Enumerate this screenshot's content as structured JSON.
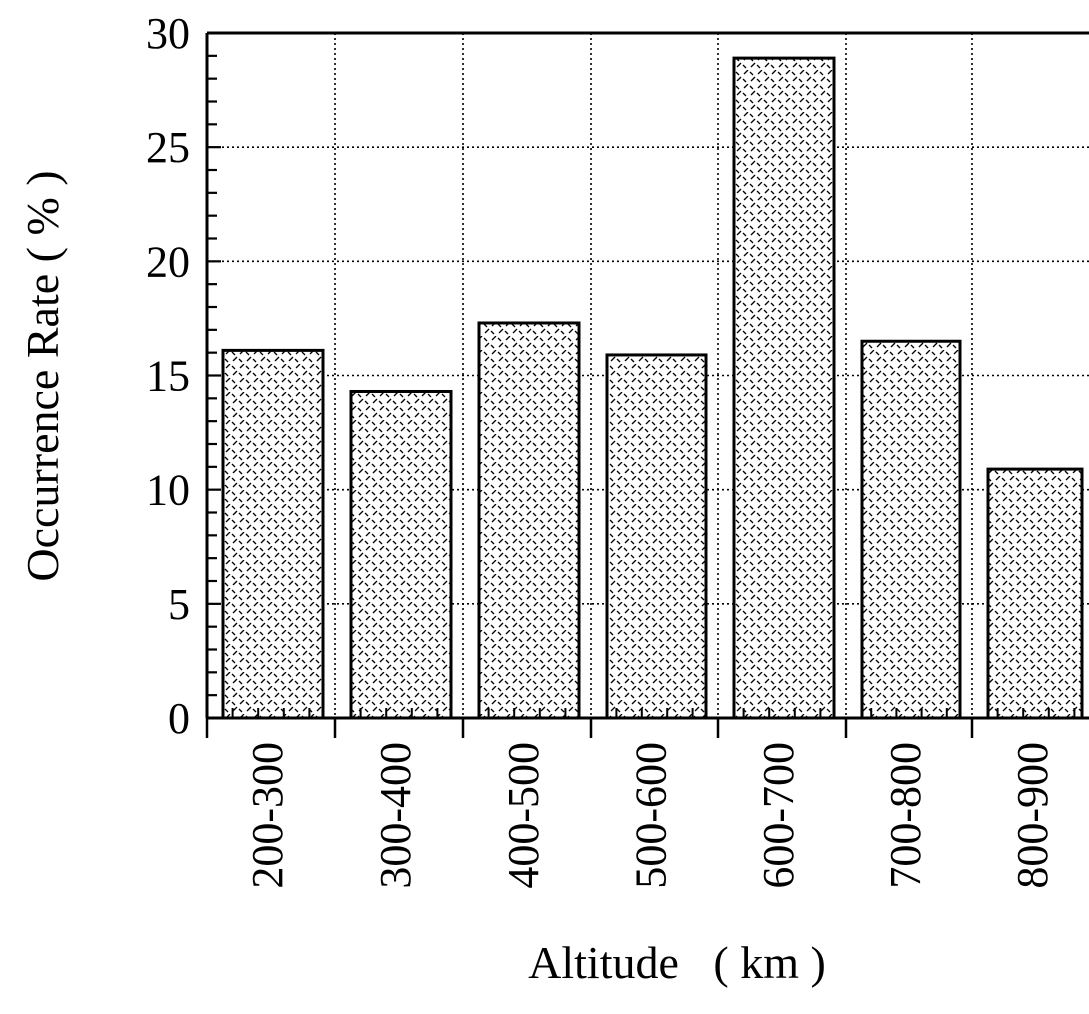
{
  "chart_data": {
    "type": "bar",
    "title": "",
    "xlabel": "Altitude   ( km )",
    "ylabel": "Occurrence Rate ( % )",
    "ylim": [
      0,
      30
    ],
    "yticks": [
      "0",
      "5",
      "10",
      "15",
      "20",
      "25",
      "30"
    ],
    "categories": [
      "200-300",
      "300-400",
      "400-500",
      "500-600",
      "600-700",
      "700-800",
      "800-900"
    ],
    "values": [
      16.1,
      14.3,
      17.3,
      15.9,
      28.9,
      16.5,
      10.9
    ],
    "grid": true,
    "grid_style": "dotted",
    "bar_fill": "hatched",
    "colors": {
      "bar_outline": "#000000",
      "hatch": "#000000",
      "background": "#ffffff",
      "grid": "#000000"
    }
  }
}
